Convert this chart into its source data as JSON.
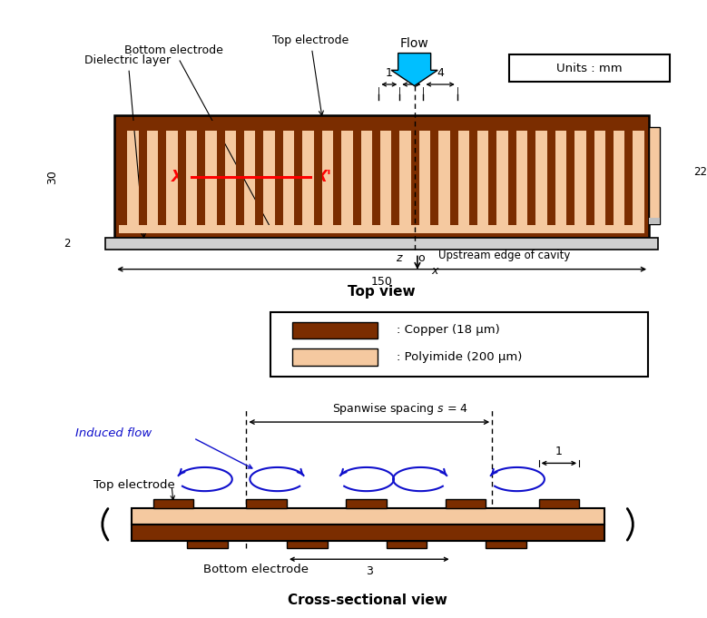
{
  "fig_width": 7.79,
  "fig_height": 6.81,
  "dpi": 100,
  "copper_color": "#7B2D00",
  "polyimide_light": "#F5C9A0",
  "polyimide_bg": "#F0C090",
  "flow_arrow_color": "#00BFFF",
  "induced_flow_color": "#1010CC",
  "top_view_title": "Top view",
  "cross_view_title": "Cross-sectional view",
  "units_text": "Units : mm",
  "legend_copper": ": Copper (18 μm)",
  "legend_polyimide": ": Polyimide (200 μm)"
}
